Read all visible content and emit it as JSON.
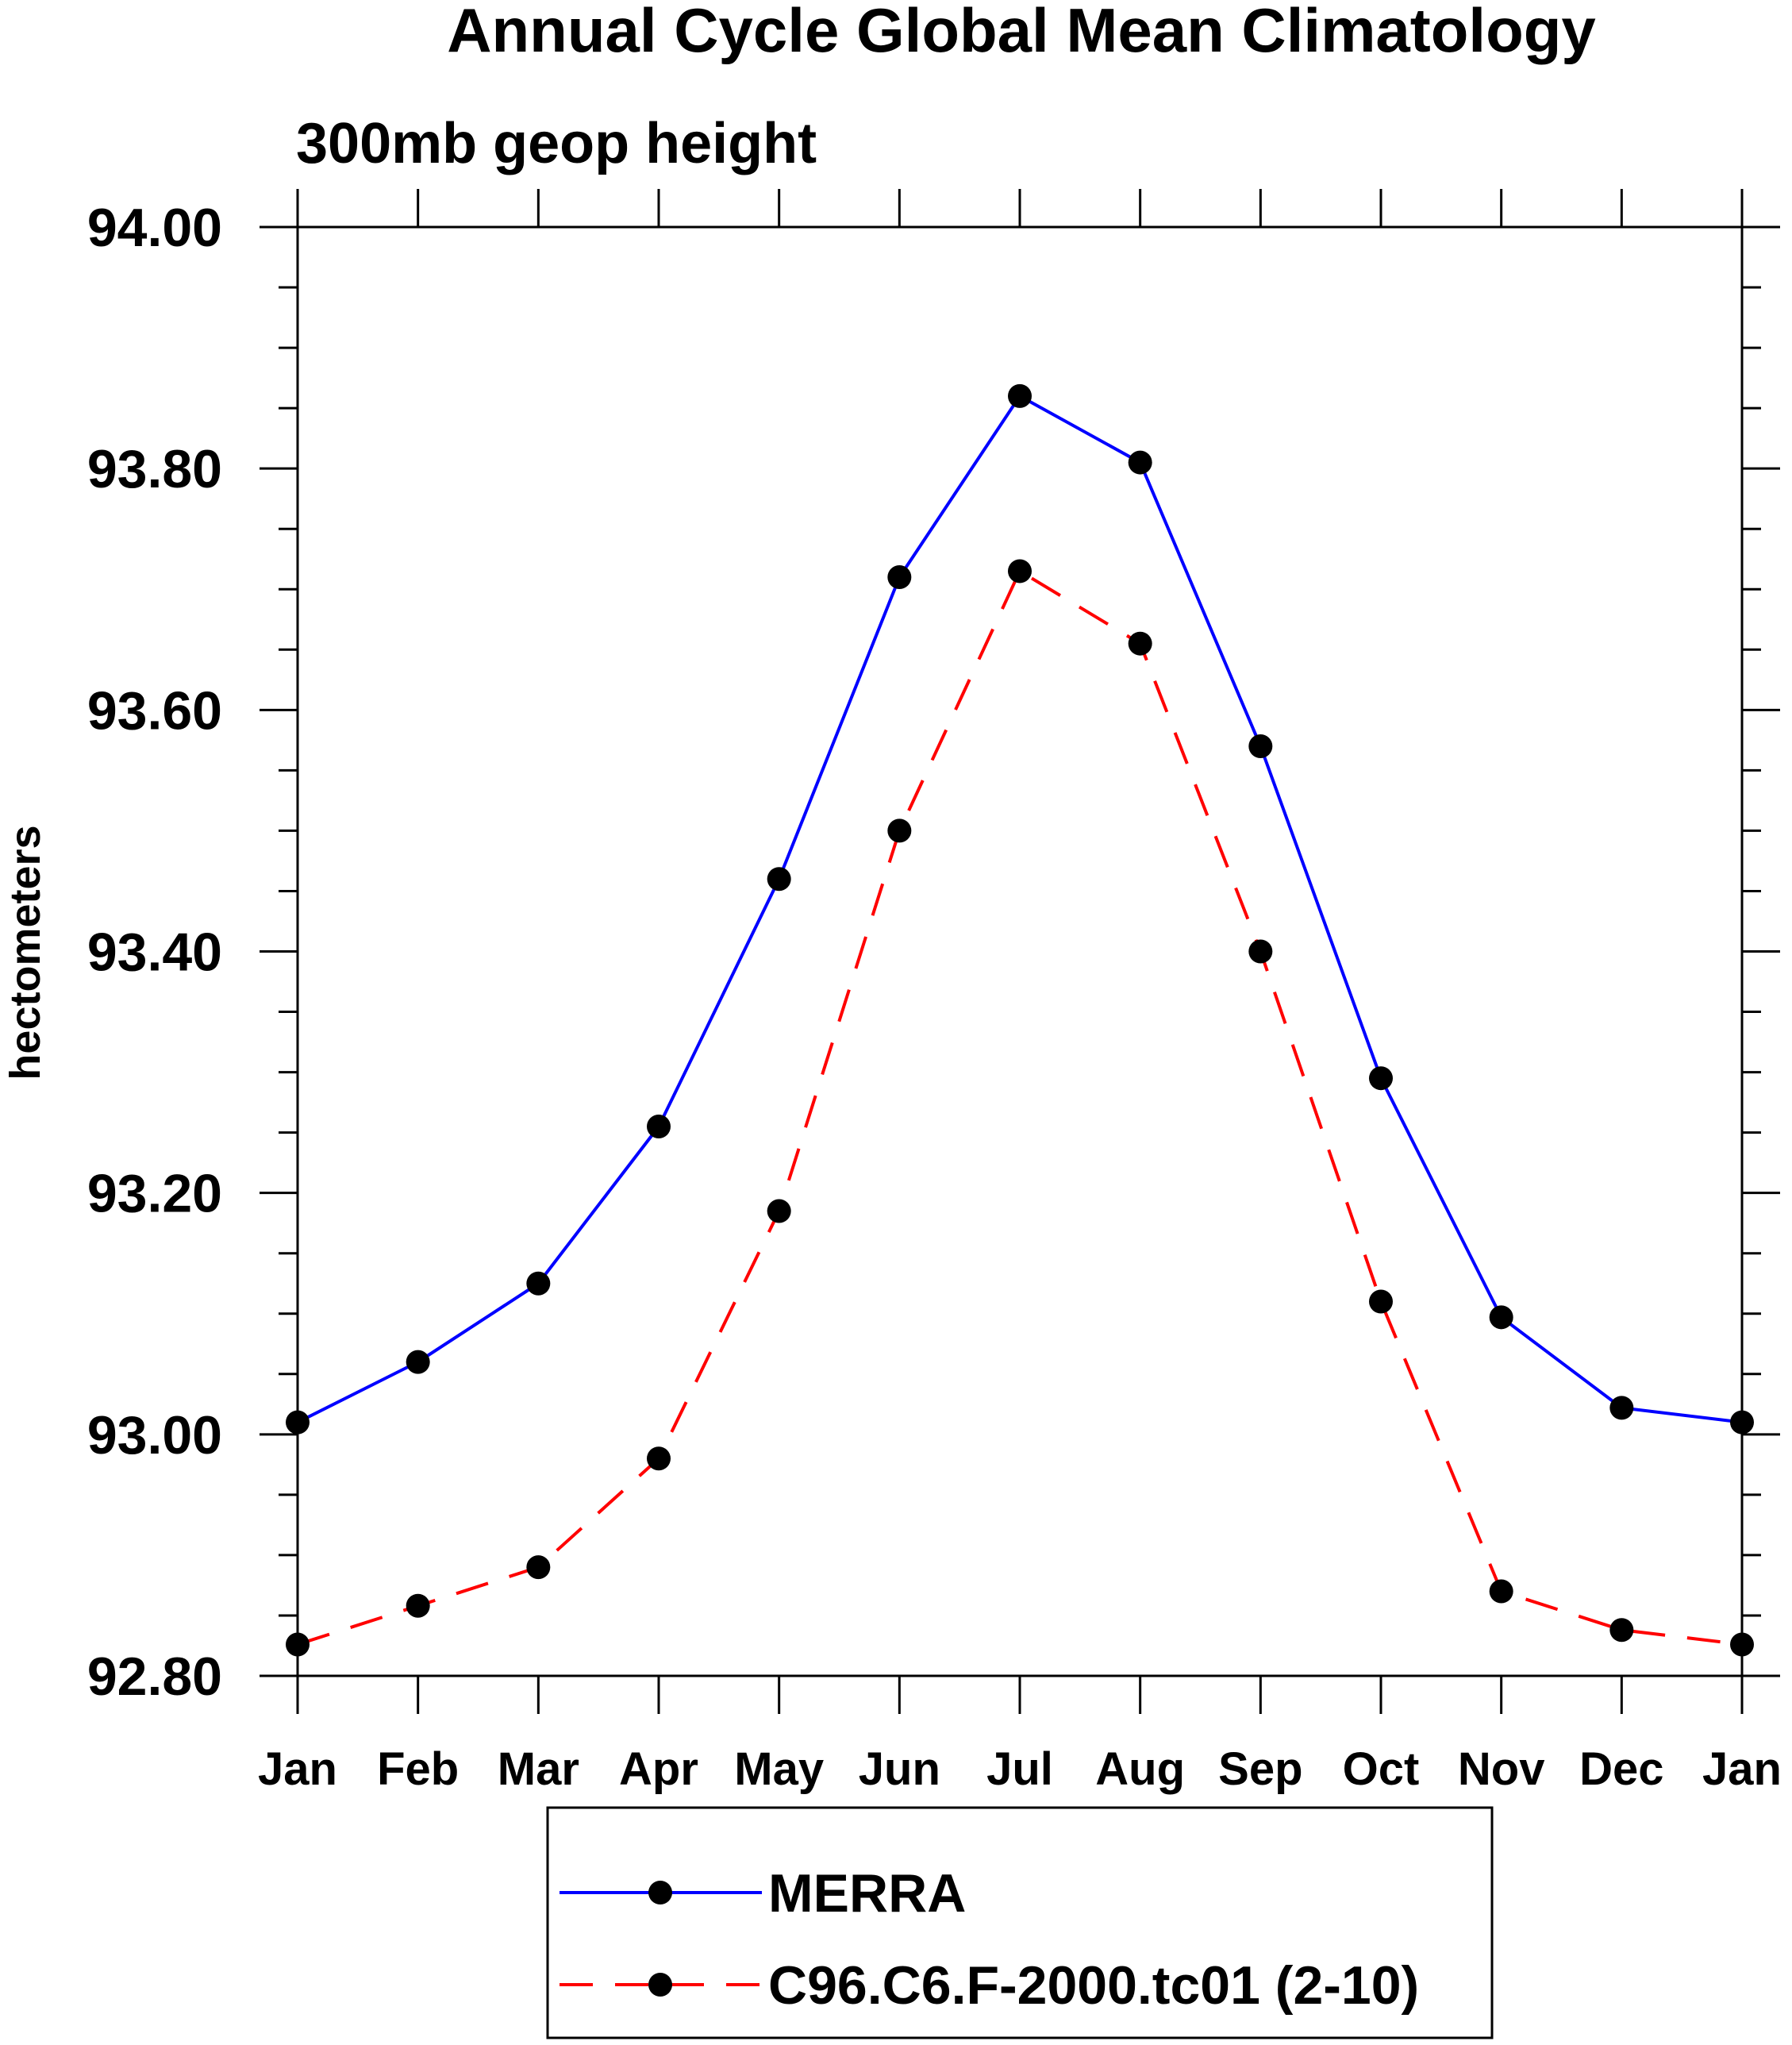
{
  "chart_data": {
    "type": "line",
    "title": "Annual Cycle Global Mean Climatology",
    "subtitle": "300mb geop height",
    "xlabel": "",
    "ylabel": "hectometers",
    "categories": [
      "Jan",
      "Feb",
      "Mar",
      "Apr",
      "May",
      "Jun",
      "Jul",
      "Aug",
      "Sep",
      "Oct",
      "Nov",
      "Dec",
      "Jan"
    ],
    "ylim": [
      92.8,
      94.0
    ],
    "yticks": [
      92.8,
      93.0,
      93.2,
      93.4,
      93.6,
      93.8,
      94.0
    ],
    "ytick_labels": [
      "92.80",
      "93.00",
      "93.20",
      "93.40",
      "93.60",
      "93.80",
      "94.00"
    ],
    "y_minor_step": 0.05,
    "grid": false,
    "legend_position": "bottom-center",
    "series": [
      {
        "name": "MERRA",
        "color": "#0000ff",
        "style": "solid",
        "values": [
          93.01,
          93.06,
          93.125,
          93.255,
          93.46,
          93.71,
          93.86,
          93.805,
          93.57,
          93.295,
          93.097,
          93.022,
          93.01
        ]
      },
      {
        "name": "C96.C6.F-2000.tc01 (2-10)",
        "color": "#ff0000",
        "style": "dashed",
        "values": [
          92.826,
          92.858,
          92.89,
          92.98,
          93.185,
          93.5,
          93.715,
          93.655,
          93.4,
          93.11,
          92.87,
          92.838,
          92.826
        ]
      }
    ]
  }
}
